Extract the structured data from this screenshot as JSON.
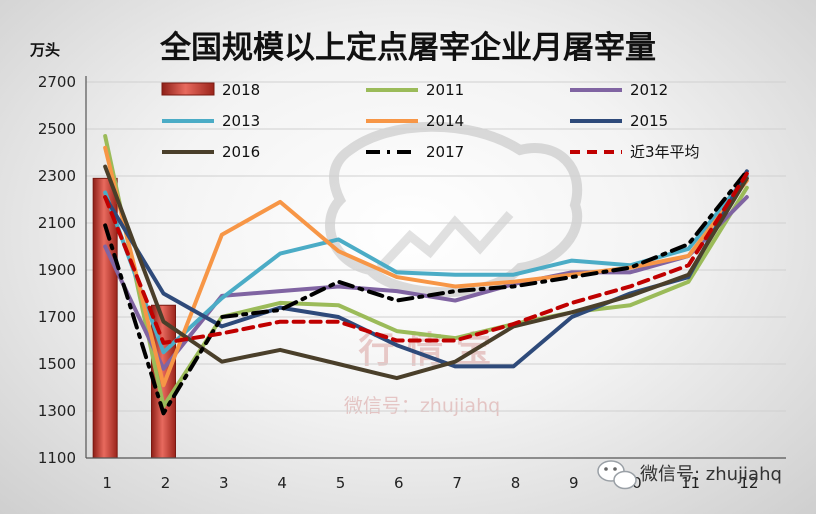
{
  "chart_data": {
    "type": "bar+line",
    "title": "全国规模以上定点屠宰企业月屠宰量",
    "unit_label": "万头",
    "categories": [
      "1",
      "2",
      "3",
      "4",
      "5",
      "6",
      "7",
      "8",
      "9",
      "10",
      "11",
      "12"
    ],
    "ylim": [
      1100,
      2700
    ],
    "yticks": [
      1100,
      1300,
      1500,
      1700,
      1900,
      2100,
      2300,
      2500,
      2700
    ],
    "grid": true,
    "legend_position": "top",
    "bar_series": [
      {
        "name": "2018",
        "color": "#c0392b",
        "values": [
          2290,
          1750
        ]
      }
    ],
    "line_series": [
      {
        "name": "2011",
        "color": "#9bbb59",
        "dash": "solid",
        "values": [
          2470,
          1320,
          1700,
          1760,
          1750,
          1640,
          1610,
          1670,
          1720,
          1750,
          1850,
          2250
        ]
      },
      {
        "name": "2012",
        "color": "#8064a2",
        "dash": "solid",
        "values": [
          2000,
          1480,
          1790,
          1810,
          1830,
          1810,
          1770,
          1840,
          1890,
          1890,
          1960,
          2210
        ]
      },
      {
        "name": "2013",
        "color": "#4bacc6",
        "dash": "solid",
        "values": [
          2230,
          1550,
          1780,
          1970,
          2030,
          1890,
          1880,
          1880,
          1940,
          1920,
          1990,
          2300
        ]
      },
      {
        "name": "2014",
        "color": "#f79646",
        "dash": "solid",
        "values": [
          2420,
          1410,
          2050,
          2190,
          1980,
          1870,
          1830,
          1850,
          1880,
          1910,
          1960,
          2280
        ]
      },
      {
        "name": "2015",
        "color": "#2e4a7a",
        "dash": "solid",
        "values": [
          2210,
          1800,
          1660,
          1740,
          1700,
          1580,
          1490,
          1490,
          1700,
          1800,
          1870,
          2320
        ]
      },
      {
        "name": "2016",
        "color": "#4a3f2a",
        "dash": "solid",
        "values": [
          2340,
          1680,
          1510,
          1560,
          1500,
          1440,
          1510,
          1660,
          1720,
          1790,
          1880,
          2290
        ]
      },
      {
        "name": "2017",
        "color": "#000000",
        "dash": "dashdot",
        "values": [
          2090,
          1290,
          1700,
          1730,
          1850,
          1770,
          1810,
          1830,
          1870,
          1910,
          2010,
          2320
        ]
      },
      {
        "name": "近3年平均",
        "color": "#c00000",
        "dash": "dash",
        "values": [
          2210,
          1590,
          1630,
          1680,
          1680,
          1600,
          1600,
          1670,
          1760,
          1830,
          1920,
          2310
        ]
      }
    ]
  },
  "watermark": {
    "brand_text": "行 情 宝",
    "wechat_text": "微信号：zhujiahq"
  },
  "footer": {
    "wechat_label": "微信号: zhujiahq"
  }
}
